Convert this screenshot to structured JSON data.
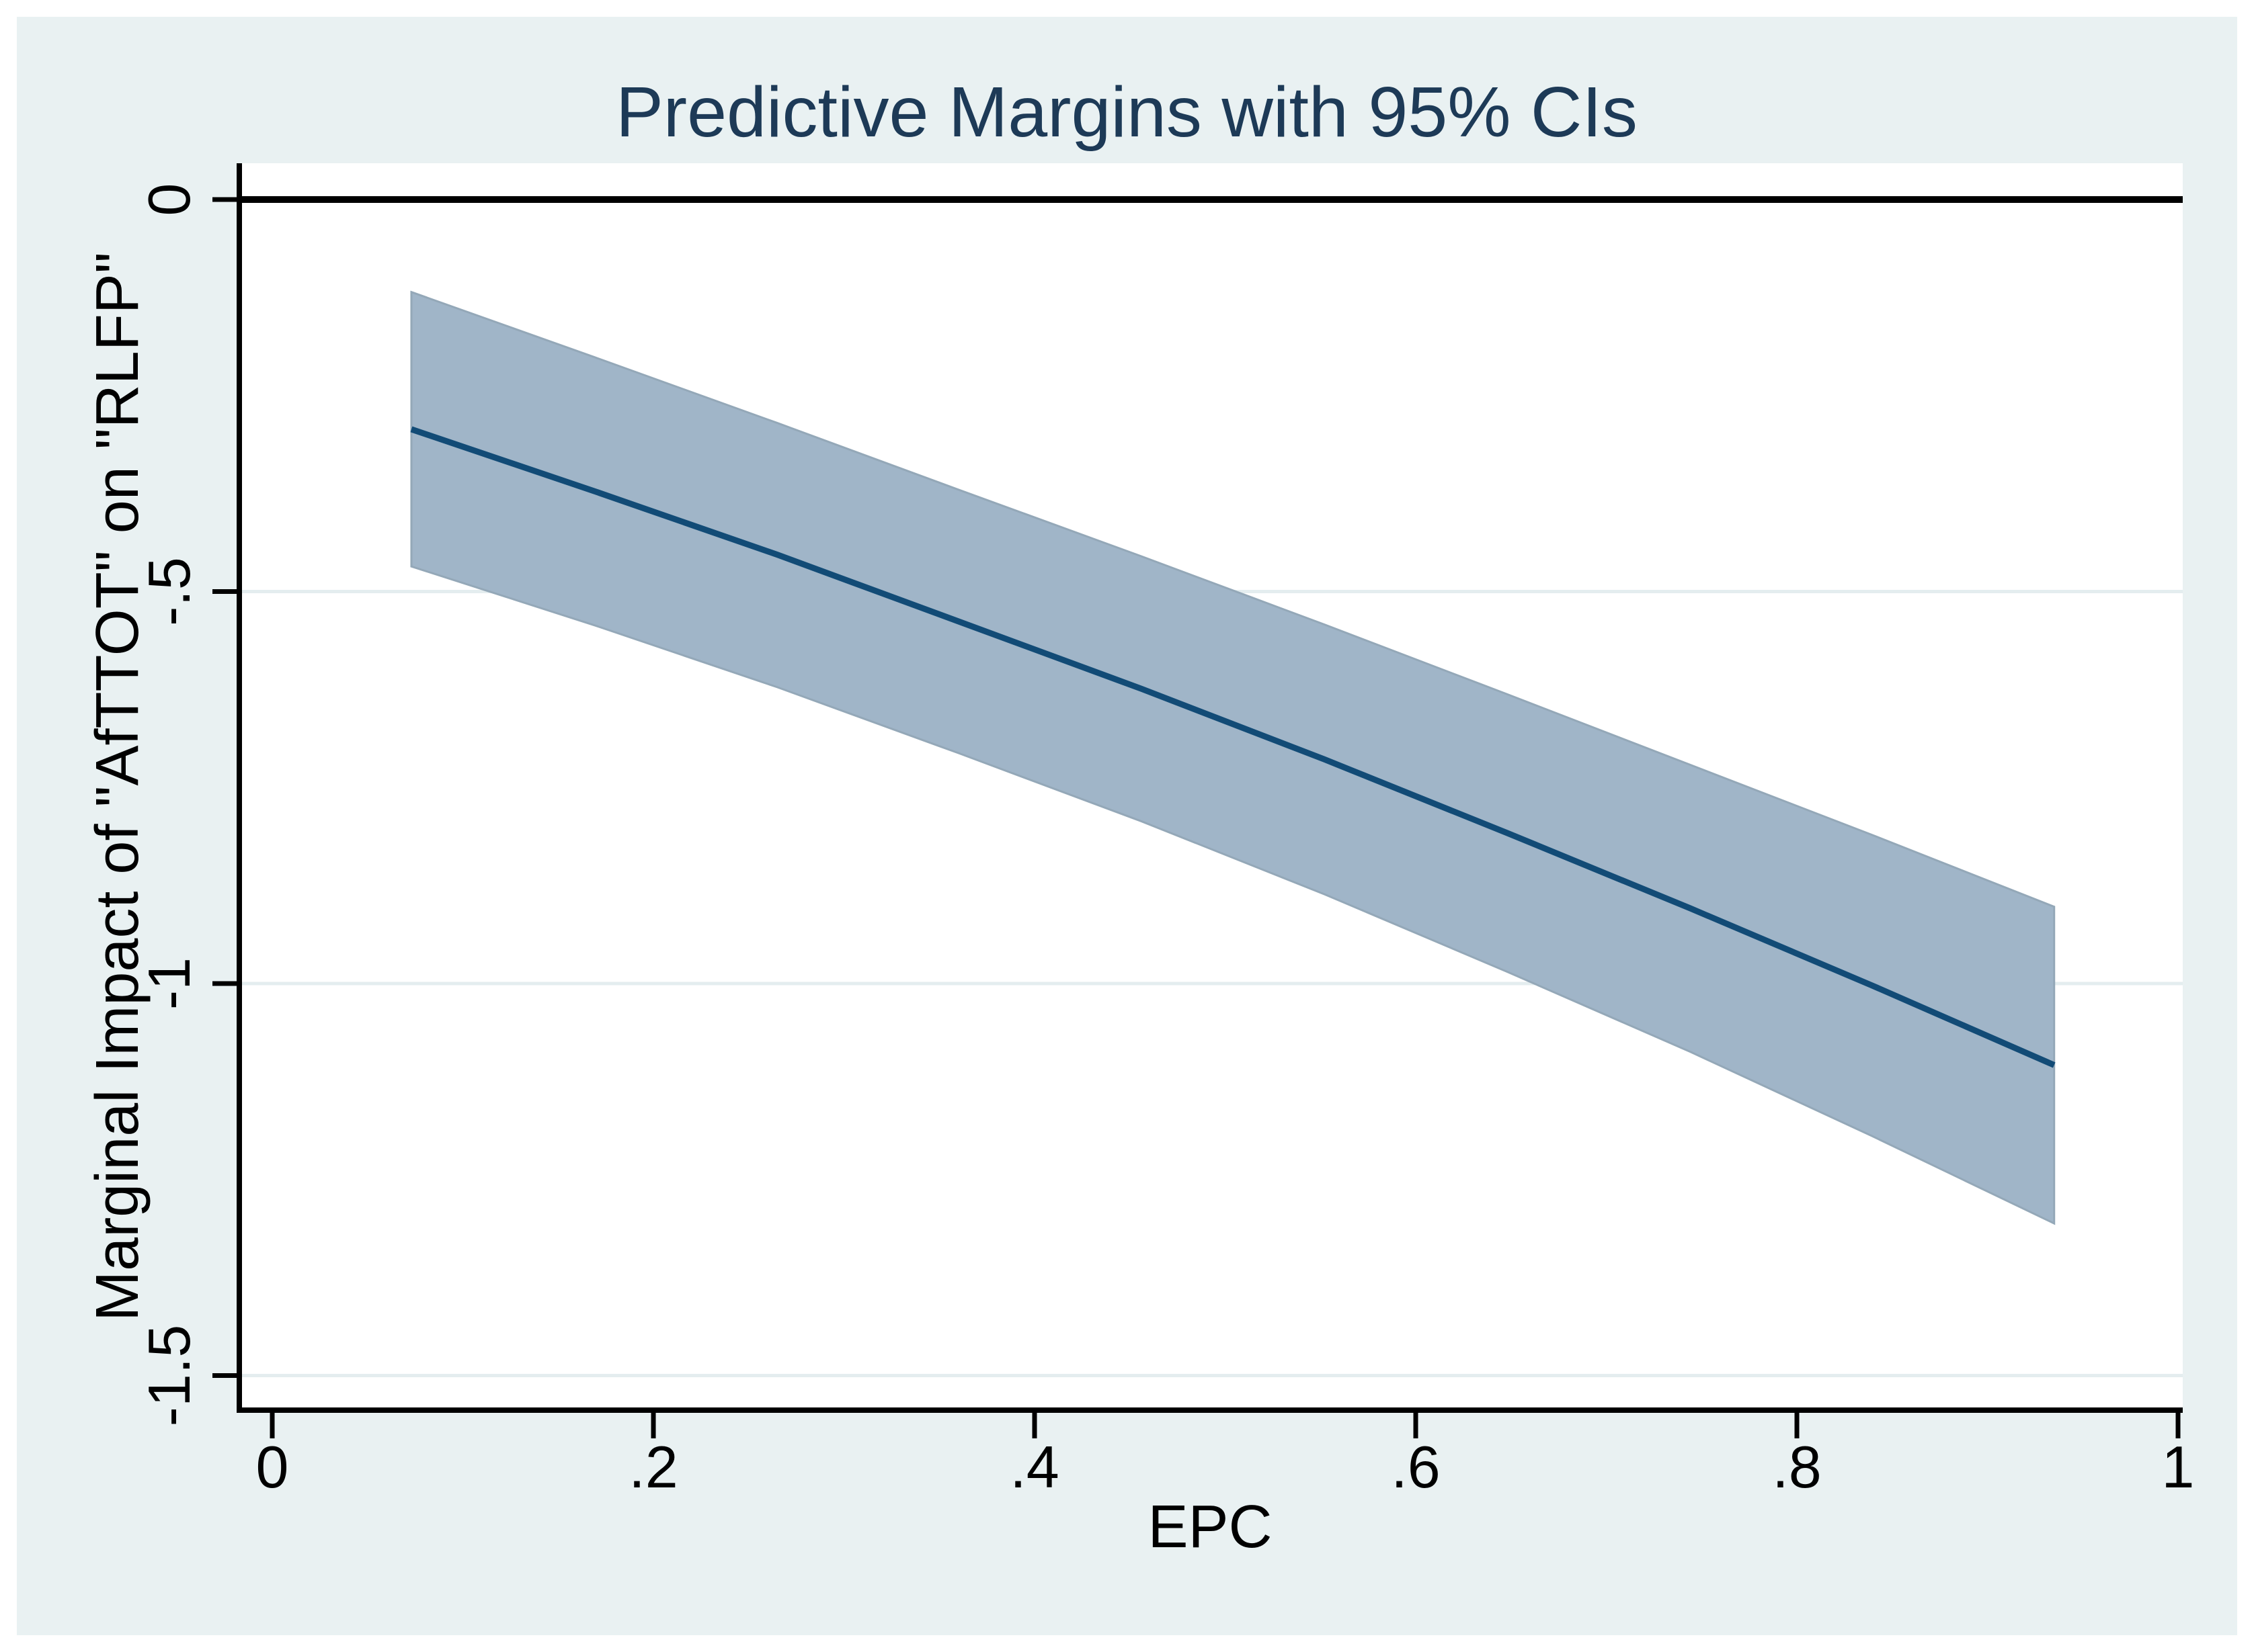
{
  "chart_data": {
    "type": "line",
    "title": "Predictive Margins with 95% CIs",
    "xlabel": "EPC",
    "ylabel": "Marginal Impact of \"AfTTOT\" on \"RLFP\"",
    "x": [
      0.073,
      0.169,
      0.265,
      0.36,
      0.456,
      0.552,
      0.648,
      0.744,
      0.839,
      0.935
    ],
    "y_mean": [
      -0.293,
      -0.372,
      -0.453,
      -0.538,
      -0.624,
      -0.714,
      -0.808,
      -0.904,
      -1.002,
      -1.104
    ],
    "ci_upper": [
      -0.118,
      -0.201,
      -0.285,
      -0.37,
      -0.455,
      -0.542,
      -0.631,
      -0.721,
      -0.81,
      -0.902
    ],
    "ci_lower": [
      -0.468,
      -0.543,
      -0.622,
      -0.706,
      -0.793,
      -0.886,
      -0.985,
      -1.087,
      -1.194,
      -1.306
    ],
    "xticks": [
      {
        "v": 0,
        "label": "0"
      },
      {
        "v": 0.2,
        "label": ".2"
      },
      {
        "v": 0.4,
        "label": ".4"
      },
      {
        "v": 0.6,
        "label": ".6"
      },
      {
        "v": 0.8,
        "label": ".8"
      },
      {
        "v": 1,
        "label": "1"
      }
    ],
    "yticks": [
      {
        "v": 0,
        "label": "0"
      },
      {
        "v": -0.5,
        "label": "-.5"
      },
      {
        "v": -1,
        "label": "-1"
      },
      {
        "v": -1.5,
        "label": "-1.5"
      }
    ],
    "xlim": [
      -0.017,
      1.002
    ],
    "ylim": [
      -1.544,
      0.046
    ],
    "grid": true,
    "legend": "none",
    "zero_reference_line": 0
  },
  "colors": {
    "outer_bg": "#ffffff",
    "canvas_bg": "#e9f1f2",
    "plot_bg": "#ffffff",
    "grid": "#e4edef",
    "axis": "#000000",
    "zero_line": "#000000",
    "tick_text": "#000000",
    "ci_fill": "#a0b5c8",
    "ci_edge": "#94a8b8",
    "line": "#124b76",
    "title": "#1d3a57"
  }
}
